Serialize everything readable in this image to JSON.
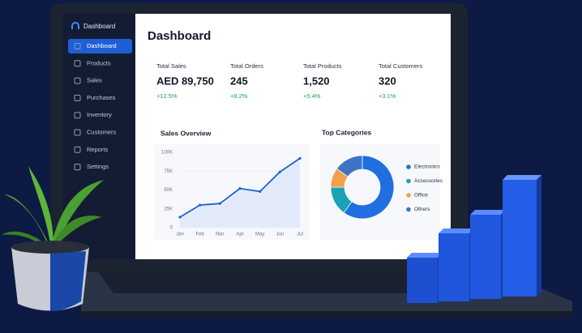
{
  "sidebar": {
    "brand": "Dashboard",
    "items": [
      "Dashboard",
      "Products",
      "Sales",
      "Purchases",
      "Inventory",
      "Customers",
      "Reports",
      "Settings"
    ]
  },
  "header": {
    "title": "Dashboard"
  },
  "kpis": [
    {
      "label": "Total Sales",
      "value": "AED 89,750",
      "change": "+12.5%"
    },
    {
      "label": "Total Orders",
      "value": "245",
      "change": "+8.2%"
    },
    {
      "label": "Total Products",
      "value": "1,520",
      "change": "+5.4%"
    },
    {
      "label": "Total Customers",
      "value": "320",
      "change": "+3.1%"
    }
  ],
  "chart_data": [
    {
      "type": "line",
      "title": "Sales Overview",
      "categories": [
        "Jan",
        "Feb",
        "Mar",
        "Apr",
        "May",
        "Jun",
        "Jul"
      ],
      "values": [
        14000,
        30000,
        32000,
        52000,
        48000,
        74000,
        92000
      ],
      "color": "#1e62d0",
      "ylim": [
        0,
        100000
      ],
      "yticks": [
        0,
        {
          "value": 25000,
          "label": "25K"
        },
        {
          "value": 50000,
          "label": "50K"
        },
        {
          "value": 75000,
          "label": "75K"
        },
        {
          "value": 100000,
          "label": "100K"
        }
      ]
    },
    {
      "type": "pie",
      "title": "Top Categories",
      "categories": [
        "Electronics",
        "Accessories",
        "Office",
        "Others"
      ],
      "values": [
        60,
        15,
        10,
        15
      ],
      "colors": [
        "#1f6fe0",
        "#1ba3b5",
        "#f3a04d",
        "#3d74c4"
      ]
    }
  ]
}
